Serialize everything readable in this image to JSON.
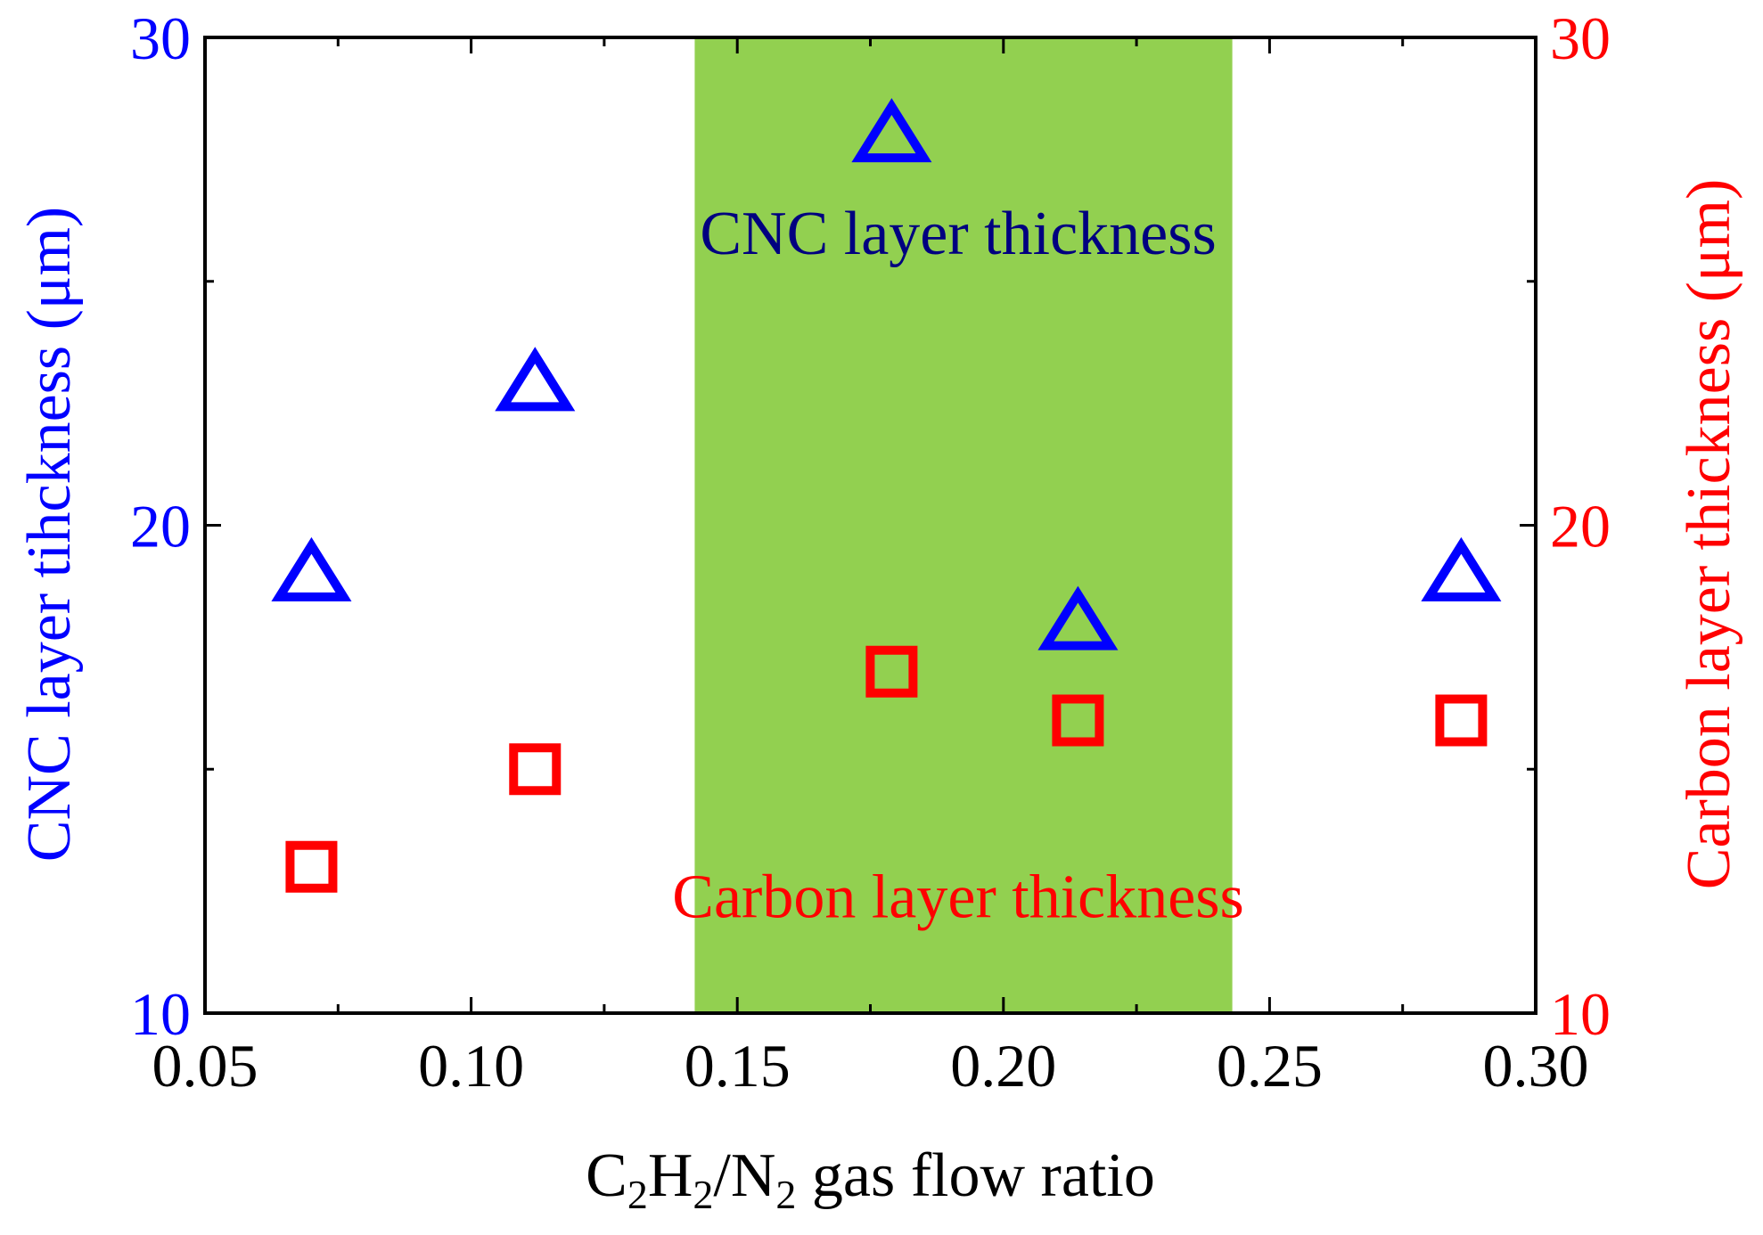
{
  "chart_data": {
    "type": "scatter",
    "title": "",
    "xlabel": {
      "parts": [
        {
          "text": "C",
          "sub": false
        },
        {
          "text": "2",
          "sub": true
        },
        {
          "text": "H",
          "sub": false
        },
        {
          "text": "2",
          "sub": true
        },
        {
          "text": "/N",
          "sub": false
        },
        {
          "text": "2",
          "sub": true
        },
        {
          "text": " gas flow ratio",
          "sub": false
        }
      ]
    },
    "ylabel_left": "CNC layer tihckness (μm)",
    "ylabel_right": "Carbon layer thickness (μm)",
    "xlim": [
      0.05,
      0.3
    ],
    "ylim_left": [
      10,
      30
    ],
    "ylim_right": [
      10,
      30
    ],
    "x_ticks": [
      "0.05",
      "0.10",
      "0.15",
      "0.20",
      "0.25",
      "0.30"
    ],
    "y_ticks_left": [
      "10",
      "20",
      "30"
    ],
    "y_ticks_right": [
      "10",
      "20",
      "30"
    ],
    "highlight_region": {
      "x_start": 0.142,
      "x_end": 0.243,
      "color": "#92d050"
    },
    "series": [
      {
        "name": "CNC layer thickness",
        "axis": "left",
        "marker": "triangle",
        "color": "#0000ff",
        "x": [
          0.07,
          0.112,
          0.179,
          0.214,
          0.286
        ],
        "y": [
          19.0,
          22.9,
          28.0,
          18.0,
          19.0
        ]
      },
      {
        "name": "Carbon layer thickness",
        "axis": "right",
        "marker": "square",
        "color": "#ff0000",
        "x": [
          0.07,
          0.112,
          0.179,
          0.214,
          0.286
        ],
        "y": [
          13.0,
          15.0,
          17.0,
          16.0,
          16.0
        ]
      }
    ],
    "annotations": [
      {
        "text": "CNC layer thickness",
        "color": "#000080",
        "at_x": 0.1915,
        "at_y": 26.0
      },
      {
        "text": "Carbon layer thickness",
        "color": "#ff0000",
        "at_x": 0.1915,
        "at_y": 12.4
      }
    ],
    "colors": {
      "left_axis": "#0000ff",
      "right_axis": "#ff0000",
      "frame": "#000000"
    }
  }
}
